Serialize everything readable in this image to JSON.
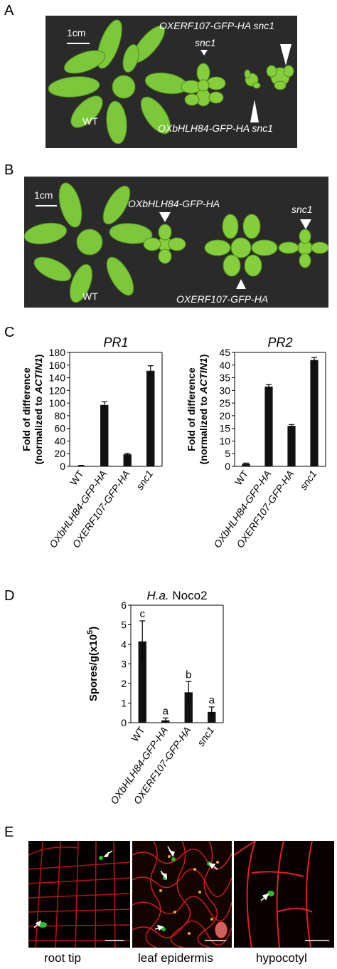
{
  "panels": {
    "a": "A",
    "b": "B",
    "c": "C",
    "d": "D",
    "e": "E"
  },
  "panel_a": {
    "scale": "1cm",
    "wt": "WT",
    "snc1": "snc1",
    "oxerf_snc1": "OXERF107-GFP-HA snc1",
    "oxbhlh_snc1": "OXbHLH84-GFP-HA snc1"
  },
  "panel_b": {
    "scale": "1cm",
    "wt": "WT",
    "oxbhlh": "OXbHLH84-GFP-HA",
    "oxerf": "OXERF107-GFP-HA",
    "snc1": "snc1"
  },
  "colors": {
    "bar": "#111111",
    "plant": "#7dc83a",
    "photo_bg": "#2a2a2a",
    "cell_wall": "#d81e1e",
    "gfp": "#2bbb2b"
  },
  "chart_data": [
    {
      "type": "bar",
      "title": "PR1",
      "ylabel_line1": "Fold of difference",
      "ylabel_line2_pre": "(normalized to ",
      "ylabel_line2_em": "ACTIN1",
      "ylabel_line2_post": ")",
      "categories": [
        "WT",
        "OXbHLH84-GFP-HA",
        "OXERF107-GFP-HA",
        "snc1"
      ],
      "values": [
        1,
        97,
        19,
        151
      ],
      "errors": [
        0.5,
        5,
        1.5,
        8
      ],
      "ylim": [
        0,
        180
      ],
      "yticks": [
        "0",
        "20",
        "40",
        "60",
        "80",
        "100",
        "120",
        "140",
        "160",
        "180"
      ]
    },
    {
      "type": "bar",
      "title": "PR2",
      "ylabel_line1": "Fold of difference",
      "ylabel_line2_pre": "(normalized to ",
      "ylabel_line2_em": "ACTIN1",
      "ylabel_line2_post": ")",
      "categories": [
        "WT",
        "OXbHLH84-GFP-HA",
        "OXERF107-GFP-HA",
        "snc1"
      ],
      "values": [
        1,
        31.5,
        16,
        42
      ],
      "errors": [
        0.3,
        0.8,
        0.5,
        1
      ],
      "ylim": [
        0,
        45
      ],
      "yticks": [
        "0",
        "5",
        "10",
        "15",
        "20",
        "25",
        "30",
        "35",
        "40",
        "45"
      ]
    },
    {
      "type": "bar",
      "title_em": "H.a.",
      "title_rest": " Noco2",
      "ylabel": "Spores/g(x10",
      "ylabel_sup": "5",
      "ylabel_end": ")",
      "categories": [
        "WT",
        "OXbHLH84-GFP-HA",
        "OXERF107-GFP-HA",
        "snc1"
      ],
      "values": [
        4.15,
        0.12,
        1.55,
        0.55
      ],
      "errors": [
        1.05,
        0.12,
        0.55,
        0.25
      ],
      "letters": [
        "c",
        "a",
        "b",
        "a"
      ],
      "ylim": [
        0,
        6
      ],
      "yticks": [
        "0",
        "1",
        "2",
        "3",
        "4",
        "5",
        "6"
      ]
    }
  ],
  "panel_e": {
    "captions": [
      "root tip",
      "leaf epidermis",
      "hypocotyl"
    ]
  }
}
